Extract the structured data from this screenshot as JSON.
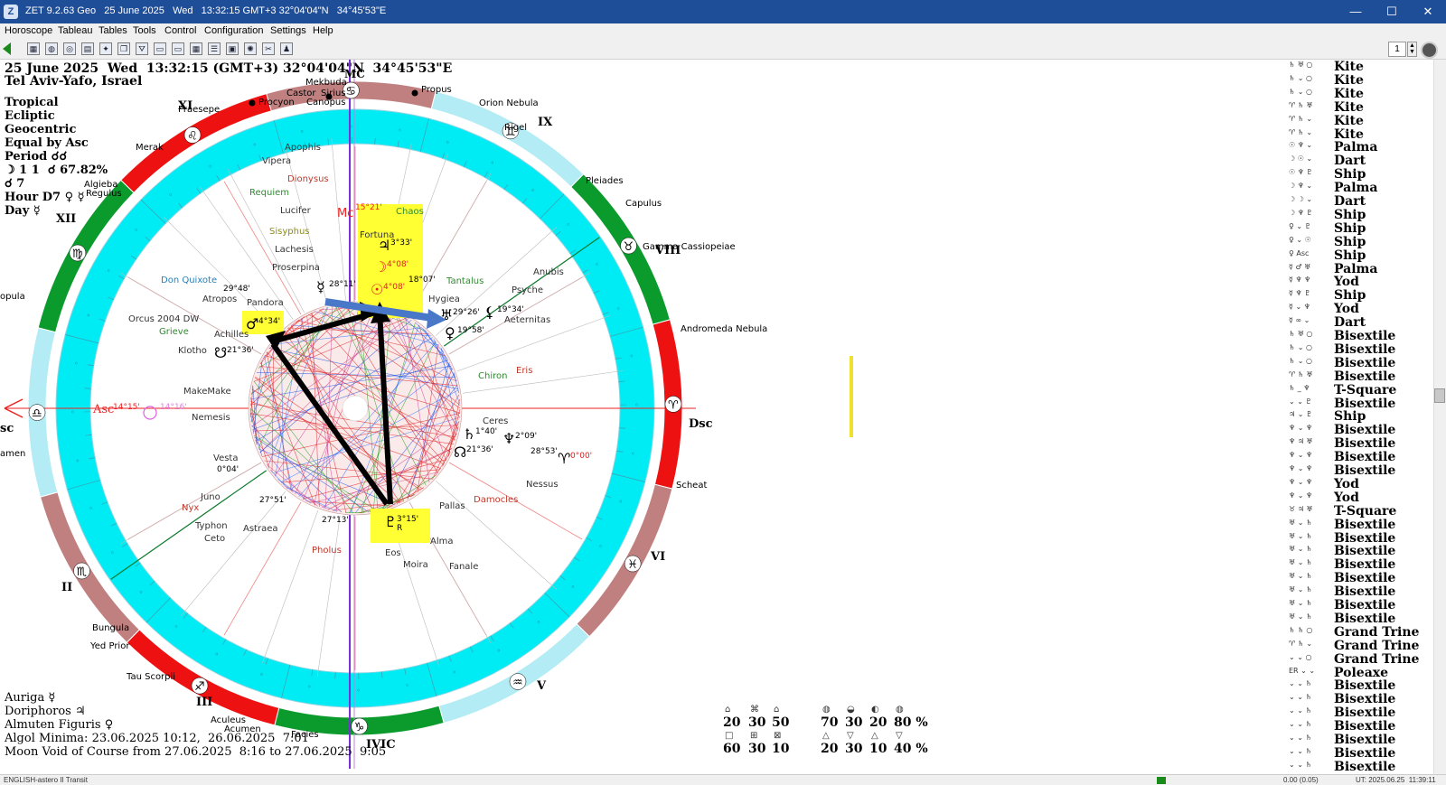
{
  "window": {
    "title": "ZET 9.2.63 Geo   25 June 2025   Wed   13:32:15 GMT+3 32°04'04\"N   34°45'53\"E",
    "icon_label": "Z",
    "minimize_label": "—",
    "maximize_label": "☐",
    "close_label": "✕"
  },
  "menu": [
    "Horoscope",
    "Tableau",
    "Tables",
    "Tools",
    "Control",
    "Configuration",
    "Settings",
    "Help"
  ],
  "toolbar": {
    "icons": [
      "table-icon",
      "globe-icon",
      "wheel-icon",
      "chart-icon",
      "star-icon",
      "copy-icon",
      "filter-icon",
      "window-icon",
      "window-icon",
      "grid-icon",
      "list-icon",
      "card-icon",
      "zodiac-icon",
      "tools-icon",
      "user-icon"
    ],
    "page_value": "1"
  },
  "header": {
    "datetime": "25 June 2025  Wed  13:32:15 (GMT+3) 32°04'04\"N  34°45'53\"E",
    "place": "Tel Aviv-Yafo, Israel"
  },
  "left_info": [
    "Tropical",
    "Ecliptic",
    "Geocentric",
    "Equal by Asc",
    "Period ☌☌",
    "☽ 1 1  ☌ 67.82%",
    "☌ 7",
    "Hour D7 ♀ ☿",
    "Day ☿"
  ],
  "bottom_info": [
    "Auriga ☿",
    "Doriphoros ♃",
    "Almuten Figuris ♀",
    "Algol Minima: 23.06.2025 10:12,  26.06.2025  7:01",
    "Moon Void of Course from 27.06.2025  8:16 to 27.06.2025  9:05"
  ],
  "chart": {
    "house_labels": [
      "XII",
      "XI",
      "IX",
      "VIII",
      "VI",
      "V",
      "III",
      "II"
    ],
    "angle_labels": {
      "asc": "Asc",
      "dsc": "Dsc",
      "mc": "MC",
      "ic": "IVIC",
      "asc_short": "sc"
    },
    "axis_degrees": {
      "asc": "14°15'",
      "asc2": "14°16'",
      "mc": "15°21'"
    },
    "zodiac_signs": [
      {
        "sign": "aries",
        "glyph": "♈"
      },
      {
        "sign": "taurus",
        "glyph": "♉"
      },
      {
        "sign": "gemini",
        "glyph": "♊"
      },
      {
        "sign": "cancer",
        "glyph": "♋"
      },
      {
        "sign": "leo",
        "glyph": "♌"
      },
      {
        "sign": "virgo",
        "glyph": "♍"
      },
      {
        "sign": "libra",
        "glyph": "♎"
      },
      {
        "sign": "scorpio",
        "glyph": "♏"
      },
      {
        "sign": "sagittarius",
        "glyph": "♐"
      },
      {
        "sign": "capricorn",
        "glyph": "♑"
      },
      {
        "sign": "aquarius",
        "glyph": "♒"
      },
      {
        "sign": "pisces",
        "glyph": "♓"
      }
    ],
    "stars": [
      "Mekbuda",
      "Castor",
      "Sirius",
      "Canopus",
      "Propus",
      "Orion Nebula",
      "Rigel",
      "Procyon",
      "Praesepe",
      "Merak",
      "Algieba",
      "Regulus",
      "Pleiades",
      "Capulus",
      "Gamma Cassiopeiae",
      "Andromeda Nebula",
      "Scheat",
      "Bungula",
      "Yed Prior",
      "Tau Scorpii",
      "Aculeus",
      "Acumen",
      "Facies",
      "opula",
      "amen"
    ],
    "bodies": [
      {
        "name": "Chaos",
        "color": "#2f8a2f"
      },
      {
        "name": "Fortuna",
        "color": "#333333"
      },
      {
        "name": "Dionysus",
        "color": "#c0392b"
      },
      {
        "name": "Apophis",
        "color": "#333333"
      },
      {
        "name": "Vipera",
        "color": "#333333"
      },
      {
        "name": "Requiem",
        "color": "#2f8a2f"
      },
      {
        "name": "Lucifer",
        "color": "#333333"
      },
      {
        "name": "Sisyphus",
        "color": "#8a8a1a"
      },
      {
        "name": "Lachesis",
        "color": "#333333"
      },
      {
        "name": "Proserpina",
        "color": "#333333"
      },
      {
        "name": "Don Quixote",
        "color": "#2b7fb5"
      },
      {
        "name": "Atropos",
        "color": "#333333"
      },
      {
        "name": "Pandora",
        "color": "#333333"
      },
      {
        "name": "Orcus 2004 DW",
        "color": "#333333"
      },
      {
        "name": "Grieve",
        "color": "#2f8a2f"
      },
      {
        "name": "Achilles",
        "color": "#333333"
      },
      {
        "name": "Klotho",
        "color": "#333333"
      },
      {
        "name": "MakeMake",
        "color": "#333333"
      },
      {
        "name": "Nemesis",
        "color": "#333333"
      },
      {
        "name": "Tantalus",
        "color": "#2f8a2f"
      },
      {
        "name": "Hygiea",
        "color": "#333333"
      },
      {
        "name": "Anubis",
        "color": "#333333"
      },
      {
        "name": "Psyche",
        "color": "#333333"
      },
      {
        "name": "Aeternitas",
        "color": "#333333"
      },
      {
        "name": "Chiron",
        "color": "#2f8a2f"
      },
      {
        "name": "Eris",
        "color": "#c0392b"
      },
      {
        "name": "Ceres",
        "color": "#333333"
      },
      {
        "name": "Nessus",
        "color": "#333333"
      },
      {
        "name": "Damocles",
        "color": "#c0392b"
      },
      {
        "name": "Pallas",
        "color": "#333333"
      },
      {
        "name": "Vesta",
        "color": "#333333"
      },
      {
        "name": "Juno",
        "color": "#333333"
      },
      {
        "name": "Nyx",
        "color": "#c0392b"
      },
      {
        "name": "Typhon",
        "color": "#333333"
      },
      {
        "name": "Ceto",
        "color": "#333333"
      },
      {
        "name": "Astraea",
        "color": "#333333"
      },
      {
        "name": "Pholus",
        "color": "#c0392b"
      },
      {
        "name": "Eos",
        "color": "#333333"
      },
      {
        "name": "Moira",
        "color": "#333333"
      },
      {
        "name": "Alma",
        "color": "#333333"
      },
      {
        "name": "Fanale",
        "color": "#333333"
      }
    ],
    "planets": [
      {
        "name": "jupiter",
        "glyph": "♃",
        "degree": "3°33'",
        "highlight": true
      },
      {
        "name": "moon",
        "glyph": "☽",
        "degree": "4°08'",
        "highlight": true
      },
      {
        "name": "sun",
        "glyph": "☉",
        "degree": "4°08'",
        "highlight": true
      },
      {
        "name": "mercury",
        "glyph": "☿",
        "degree": "28°11'",
        "highlight": false
      },
      {
        "name": "mars",
        "glyph": "♂",
        "degree": "4°34'",
        "highlight": true
      },
      {
        "name": "uranus",
        "glyph": "♅",
        "degree": "29°26'",
        "highlight": false
      },
      {
        "name": "venus",
        "glyph": "♀",
        "degree": "19°58'",
        "highlight": false
      },
      {
        "name": "saturn",
        "glyph": "♄",
        "degree": "1°40'",
        "highlight": false
      },
      {
        "name": "neptune",
        "glyph": "♆",
        "degree": "2°09'",
        "highlight": false
      },
      {
        "name": "pluto",
        "glyph": "♇",
        "degree": "3°15'",
        "retro": "R",
        "highlight": true
      },
      {
        "name": "node",
        "glyph": "☊",
        "degree": "21°36'",
        "highlight": false
      },
      {
        "name": "south-node",
        "glyph": "☋",
        "degree": "21°36'",
        "highlight": false
      },
      {
        "name": "lilith",
        "glyph": "⚸",
        "degree": "19°34'",
        "highlight": false
      },
      {
        "name": "aries-point",
        "glyph": "♈",
        "degree": "0°00'",
        "highlight": false
      }
    ],
    "misc_degrees": [
      "18°07'",
      "29°48'",
      "28°53'",
      "27°51'",
      "27°13'",
      "0°04'"
    ]
  },
  "aspects": [
    "Kite",
    "Kite",
    "Kite",
    "Kite",
    "Kite",
    "Kite",
    "Palma",
    "Dart",
    "Ship",
    "Palma",
    "Dart",
    "Ship",
    "Ship",
    "Ship",
    "Ship",
    "Palma",
    "Yod",
    "Ship",
    "Yod",
    "Dart",
    "Bisextile",
    "Bisextile",
    "Bisextile",
    "Bisextile",
    "T-Square",
    "Bisextile",
    "Ship",
    "Bisextile",
    "Bisextile",
    "Bisextile",
    "Bisextile",
    "Yod",
    "Yod",
    "T-Square",
    "Bisextile",
    "Bisextile",
    "Bisextile",
    "Bisextile",
    "Bisextile",
    "Bisextile",
    "Bisextile",
    "Bisextile",
    "Grand Trine",
    "Grand Trine",
    "Grand Trine",
    "Poleaxe",
    "Bisextile",
    "Bisextile",
    "Bisextile",
    "Bisextile",
    "Bisextile",
    "Bisextile",
    "Bisextile",
    "Bisextile"
  ],
  "aspect_glyphs": [
    "♄ ♅ ○",
    "♄ ⌄ ○",
    "♄ ⌄ ○",
    "♈ ♄ ♅",
    "♈ ♄ ⌄",
    "♈ ♄ ⌄",
    "☉ ♆ ⌄",
    "☽ ☉ ⌄",
    "☉ ♆ ♇",
    "☽ ♆ ⌄",
    "☽ ☽ ⌄",
    "☽ ♆ ♇",
    "♀ ⌄ ♇",
    "♀ ⌄ ☉",
    "♀ Asc",
    "☿ ♂ ♅",
    "☿ ♆ ♆",
    "☿ ♆ ♇",
    "☿ ⌄ ♆",
    "☿ ∞ ⌄",
    "♄ ♅ ○",
    "♄ ⌄ ○",
    "♄ ⌄ ○",
    "♈ ♄ ♅",
    "♄ _ ♆",
    "⌄ ⌄ ♇",
    "♃ ⌄ ♇",
    "♆ ⌄ ♆",
    "♆ ♃ ♅",
    "♆ ⌄ ♆",
    "♆ ⌄ ♆",
    "♆ ⌄ ♆",
    "♆ ⌄ ♆",
    "♉ ♃ ♅",
    "♅ ⌄ ♄",
    "♅ ⌄ ♄",
    "♅ ⌄ ♄",
    "♅ ⌄ ♄",
    "♅ ⌄ ♄",
    "♅ ⌄ ♄",
    "♅ ⌄ ♄",
    "♅ ⌄ ♄",
    "♄ ♄ ○",
    "♈ ♄ ⌄",
    "⌄ ⌄ ○",
    "ER ⌄ ⌄",
    "⌄ ⌄ ♄",
    "⌄ ⌄ ♄",
    "⌄ ⌄ ♄",
    "⌄ ⌄ ♄",
    "⌄ ⌄ ♄",
    "⌄ ⌄ ♄",
    "⌄ ⌄ ♄",
    "⌄ ⌄ ♄"
  ],
  "stats": {
    "row1": [
      "20",
      "30",
      "50",
      "70",
      "30",
      "20",
      "80 %"
    ],
    "row2": [
      "60",
      "30",
      "10",
      "20",
      "30",
      "10",
      "40 %"
    ]
  },
  "statusbar": {
    "left": "ENGLISH-astero II Transit",
    "right_value": "0.00 (0.05)",
    "utc": "UT: 2025.06.25  11:39:11"
  },
  "colors": {
    "titlebar": "#1f4e99",
    "fire": "#ee1111",
    "earth": "#0b9a2c",
    "air": "#b3ecf5",
    "water": "#c08080",
    "inner_ring": "#00ecf5",
    "axis": "#ee2222",
    "meridian": "#7b2fd9",
    "highlight": "#ffff33"
  }
}
